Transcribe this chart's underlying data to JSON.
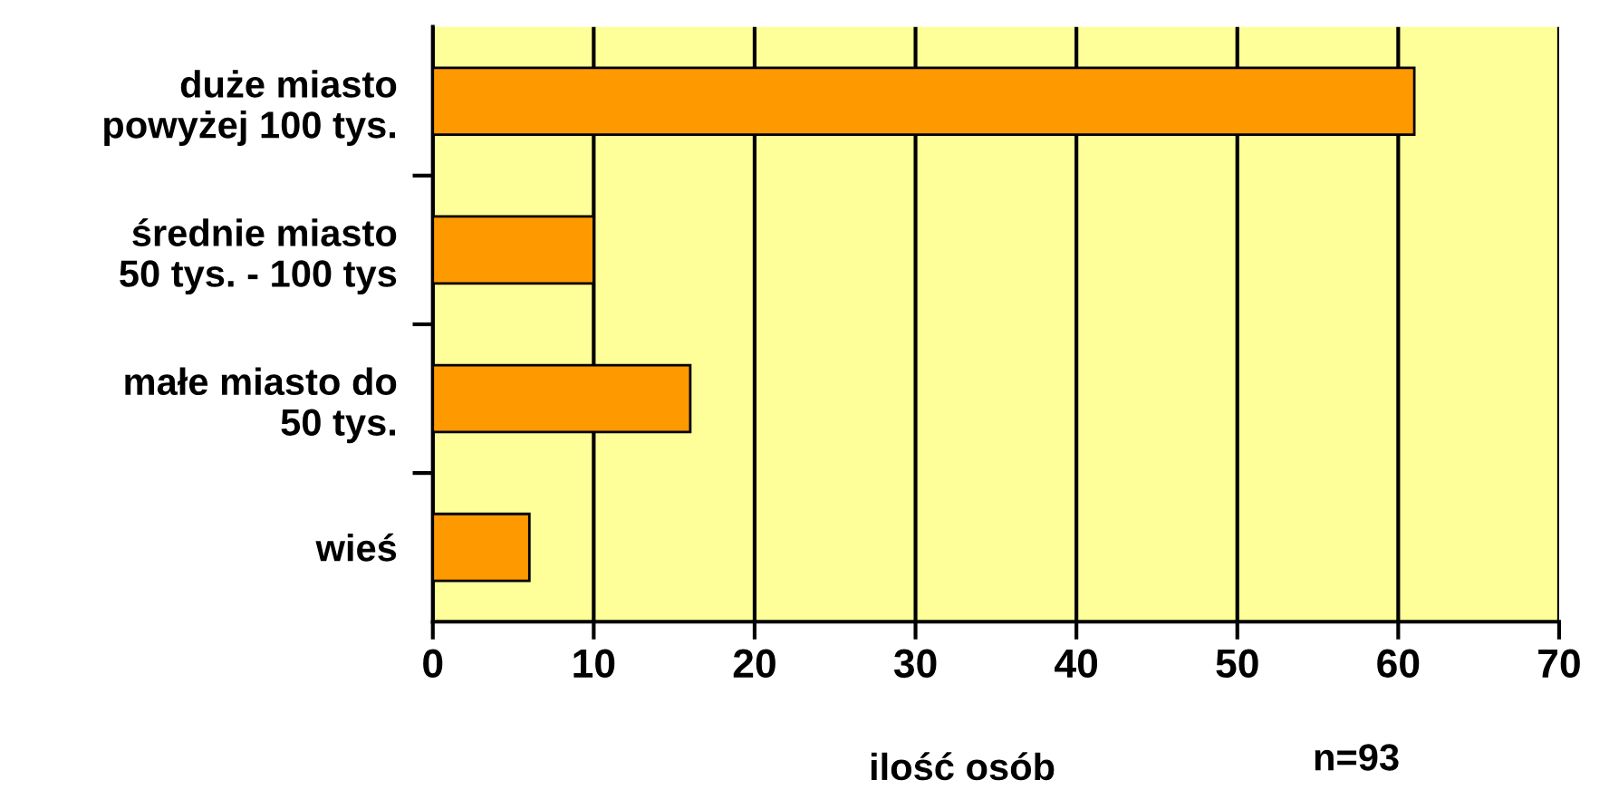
{
  "chart_data": {
    "type": "bar",
    "orientation": "horizontal",
    "categories": [
      "duże miasto\npowyżej 100 tys.",
      "średnie miasto\n50 tys. - 100 tys",
      "małe miasto do\n50 tys.",
      "wieś"
    ],
    "values": [
      61,
      10,
      16,
      6
    ],
    "color": "#ff9900",
    "xlim": [
      0,
      70
    ],
    "xticks": [
      0,
      10,
      20,
      30,
      40,
      50,
      60,
      70
    ],
    "grid": "x",
    "xlabel": "ilość osób",
    "annotations": [
      "n=93"
    ]
  }
}
